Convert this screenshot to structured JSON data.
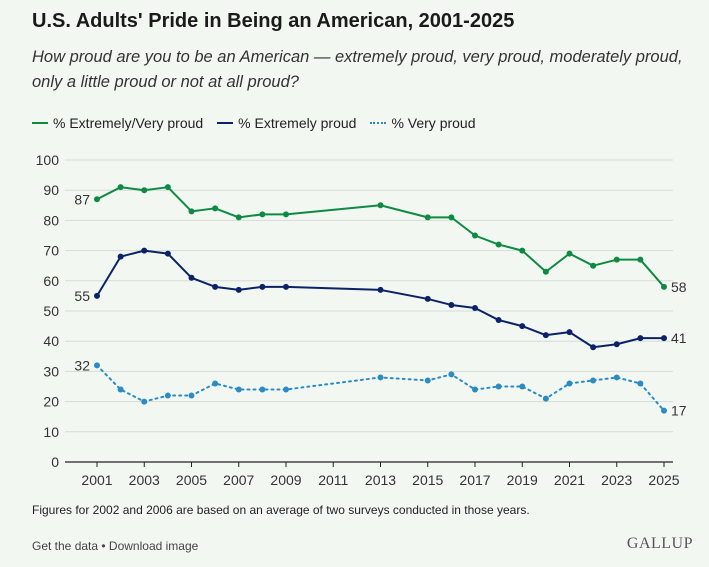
{
  "chart_data": {
    "type": "line",
    "title": "U.S. Adults' Pride in Being an American, 2001-2025",
    "subtitle": "How proud are you to be an American — extremely proud, very proud, moderately proud, only a little proud or not at all proud?",
    "x": [
      2001,
      2002,
      2003,
      2004,
      2005,
      2006,
      2007,
      2008,
      2009,
      2013,
      2015,
      2016,
      2017,
      2018,
      2019,
      2020,
      2021,
      2022,
      2023,
      2024,
      2025
    ],
    "xticks": [
      "2001",
      "2003",
      "2005",
      "2007",
      "2009",
      "2011",
      "2013",
      "2015",
      "2017",
      "2019",
      "2021",
      "2023",
      "2025"
    ],
    "yticks": [
      "0",
      "10",
      "20",
      "30",
      "40",
      "50",
      "60",
      "70",
      "80",
      "90",
      "100"
    ],
    "ylim": [
      0,
      100
    ],
    "grid": true,
    "legend_position": "top-left",
    "series": [
      {
        "name": "% Extremely/Very proud",
        "color": "#0f8a45",
        "style": "solid",
        "values": [
          87,
          91,
          90,
          91,
          83,
          84,
          81,
          82,
          82,
          85,
          81,
          81,
          75,
          72,
          70,
          63,
          69,
          65,
          67,
          67,
          58
        ],
        "start_label": "87",
        "end_label": "58"
      },
      {
        "name": "% Extremely proud",
        "color": "#0b2366",
        "style": "solid",
        "values": [
          55,
          68,
          70,
          69,
          61,
          58,
          57,
          58,
          58,
          57,
          54,
          52,
          51,
          47,
          45,
          42,
          43,
          38,
          39,
          41,
          41
        ],
        "start_label": "55",
        "end_label": "41"
      },
      {
        "name": "% Very proud",
        "color": "#2b8cc4",
        "style": "dotted",
        "values": [
          32,
          24,
          20,
          22,
          22,
          26,
          24,
          24,
          24,
          28,
          27,
          29,
          24,
          25,
          25,
          21,
          26,
          27,
          28,
          26,
          17
        ],
        "start_label": "32",
        "end_label": "17"
      }
    ]
  },
  "footer": {
    "note": "Figures for 2002 and 2006 are based on an average of two surveys conducted in those years.",
    "get_data": "Get the data",
    "separator": " • ",
    "download": "Download image",
    "logo": "GALLUP"
  }
}
